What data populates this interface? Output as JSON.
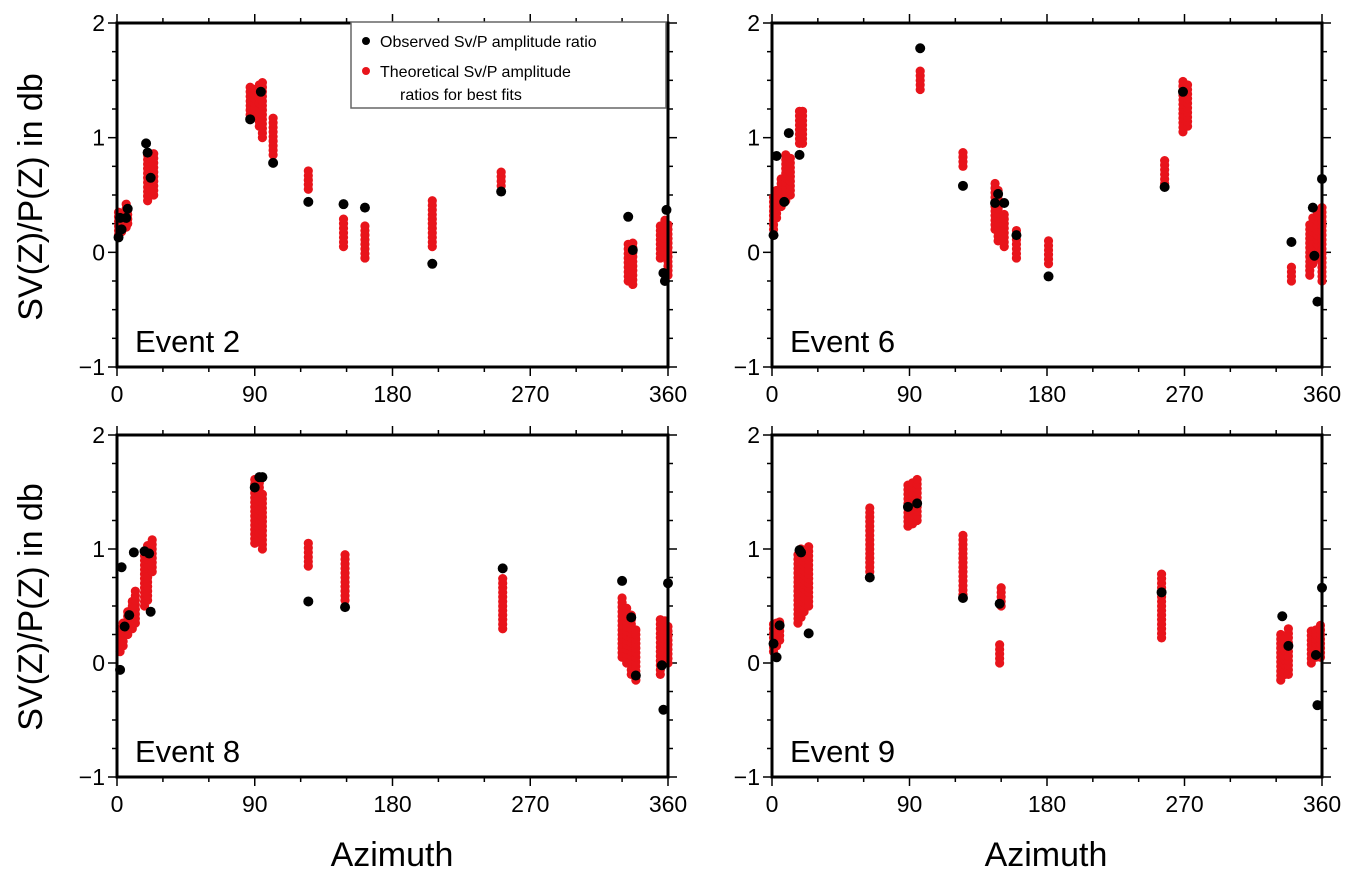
{
  "figure": {
    "ylabel": "SV(Z)/P(Z) in db",
    "xlabel": "Azimuth",
    "legend": {
      "placement": "top-right of first panel",
      "observed": "Observed Sv/P amplitude ratio",
      "theoretical_line1": "Theoretical Sv/P amplitude",
      "theoretical_line2": "ratios for best fits"
    }
  },
  "chart_data": [
    {
      "type": "scatter",
      "panel_label": "Event 2",
      "xlim": [
        0,
        360
      ],
      "ylim": [
        -1,
        2
      ],
      "xticks": [
        "0",
        "90",
        "180",
        "270",
        "360"
      ],
      "yticks": [
        "2",
        "1",
        "0",
        "−1"
      ],
      "series": [
        {
          "name": "Observed Sv/P amplitude ratio",
          "color": "#000000",
          "points": [
            [
              1,
              0.13
            ],
            [
              2,
              0.3
            ],
            [
              3,
              0.2
            ],
            [
              6,
              0.3
            ],
            [
              7,
              0.38
            ],
            [
              19,
              0.95
            ],
            [
              20,
              0.87
            ],
            [
              22,
              0.65
            ],
            [
              87,
              1.16
            ],
            [
              94,
              1.4
            ],
            [
              102,
              0.78
            ],
            [
              125,
              0.44
            ],
            [
              148,
              0.42
            ],
            [
              162,
              0.39
            ],
            [
              206,
              -0.1
            ],
            [
              251,
              0.53
            ],
            [
              334,
              0.31
            ],
            [
              337,
              0.02
            ],
            [
              357,
              -0.18
            ],
            [
              358,
              -0.25
            ],
            [
              359,
              0.37
            ]
          ]
        },
        {
          "name": "Theoretical Sv/P amplitude ratios for best fits",
          "color": "#e8141b",
          "ranges": [
            [
              1,
              0.15,
              0.35
            ],
            [
              3,
              0.18,
              0.35
            ],
            [
              6,
              0.22,
              0.42
            ],
            [
              7,
              0.25,
              0.4
            ],
            [
              20,
              0.45,
              0.85
            ],
            [
              22,
              0.5,
              0.85
            ],
            [
              24,
              0.5,
              0.88
            ],
            [
              87,
              1.2,
              1.45
            ],
            [
              90,
              1.18,
              1.45
            ],
            [
              93,
              1.1,
              1.48
            ],
            [
              95,
              1.0,
              1.48
            ],
            [
              102,
              0.85,
              1.2
            ],
            [
              125,
              0.55,
              0.72
            ],
            [
              148,
              0.05,
              0.3
            ],
            [
              162,
              -0.05,
              0.25
            ],
            [
              206,
              0.05,
              0.45
            ],
            [
              251,
              0.58,
              0.7
            ],
            [
              334,
              -0.25,
              0.08
            ],
            [
              337,
              -0.28,
              0.1
            ],
            [
              355,
              -0.05,
              0.25
            ],
            [
              358,
              0.0,
              0.3
            ],
            [
              360,
              -0.2,
              0.25
            ]
          ]
        }
      ]
    },
    {
      "type": "scatter",
      "panel_label": "Event 6",
      "xlim": [
        0,
        360
      ],
      "ylim": [
        -1,
        2
      ],
      "xticks": [
        "0",
        "90",
        "180",
        "270",
        "360"
      ],
      "yticks": [
        "2",
        "1",
        "0",
        "−1"
      ],
      "series": [
        {
          "name": "Observed Sv/P amplitude ratio",
          "color": "#000000",
          "points": [
            [
              1,
              0.15
            ],
            [
              3,
              0.84
            ],
            [
              8,
              0.44
            ],
            [
              11,
              1.04
            ],
            [
              18,
              0.85
            ],
            [
              97,
              1.78
            ],
            [
              125,
              0.58
            ],
            [
              146,
              0.43
            ],
            [
              148,
              0.51
            ],
            [
              152,
              0.43
            ],
            [
              160,
              0.15
            ],
            [
              181,
              -0.21
            ],
            [
              257,
              0.57
            ],
            [
              269,
              1.4
            ],
            [
              340,
              0.09
            ],
            [
              354,
              0.39
            ],
            [
              355,
              -0.03
            ],
            [
              357,
              -0.43
            ],
            [
              360,
              0.64
            ]
          ]
        },
        {
          "name": "Theoretical Sv/P amplitude ratios for best fits",
          "color": "#e8141b",
          "ranges": [
            [
              1,
              0.2,
              0.5
            ],
            [
              3,
              0.3,
              0.55
            ],
            [
              6,
              0.4,
              0.65
            ],
            [
              9,
              0.45,
              0.85
            ],
            [
              12,
              0.5,
              0.85
            ],
            [
              18,
              0.95,
              1.25
            ],
            [
              20,
              0.95,
              1.25
            ],
            [
              97,
              1.42,
              1.58
            ],
            [
              125,
              0.75,
              0.88
            ],
            [
              146,
              0.2,
              0.62
            ],
            [
              148,
              0.1,
              0.55
            ],
            [
              152,
              0.05,
              0.35
            ],
            [
              160,
              -0.05,
              0.2
            ],
            [
              181,
              -0.1,
              0.1
            ],
            [
              257,
              0.6,
              0.8
            ],
            [
              269,
              1.05,
              1.5
            ],
            [
              272,
              1.1,
              1.48
            ],
            [
              340,
              -0.25,
              -0.1
            ],
            [
              352,
              -0.2,
              0.25
            ],
            [
              354,
              -0.1,
              0.3
            ],
            [
              357,
              -0.05,
              0.35
            ],
            [
              360,
              -0.25,
              0.4
            ]
          ]
        }
      ]
    },
    {
      "type": "scatter",
      "panel_label": "Event 8",
      "xlim": [
        0,
        360
      ],
      "ylim": [
        -1,
        2
      ],
      "xticks": [
        "0",
        "90",
        "180",
        "270",
        "360"
      ],
      "yticks": [
        "2",
        "1",
        "0",
        "−1"
      ],
      "series": [
        {
          "name": "Observed Sv/P amplitude ratio",
          "color": "#000000",
          "points": [
            [
              2,
              -0.06
            ],
            [
              3,
              0.84
            ],
            [
              5,
              0.32
            ],
            [
              8,
              0.42
            ],
            [
              11,
              0.97
            ],
            [
              18,
              0.98
            ],
            [
              21,
              0.96
            ],
            [
              22,
              0.45
            ],
            [
              90,
              1.54
            ],
            [
              93,
              1.63
            ],
            [
              95,
              1.63
            ],
            [
              125,
              0.54
            ],
            [
              149,
              0.49
            ],
            [
              252,
              0.83
            ],
            [
              330,
              0.72
            ],
            [
              336,
              0.4
            ],
            [
              339,
              -0.11
            ],
            [
              356,
              -0.02
            ],
            [
              357,
              -0.41
            ],
            [
              360,
              0.7
            ]
          ]
        },
        {
          "name": "Theoretical Sv/P amplitude ratios for best fits",
          "color": "#e8141b",
          "ranges": [
            [
              2,
              0.1,
              0.3
            ],
            [
              4,
              0.15,
              0.35
            ],
            [
              7,
              0.25,
              0.45
            ],
            [
              10,
              0.3,
              0.55
            ],
            [
              12,
              0.35,
              0.65
            ],
            [
              18,
              0.5,
              1.0
            ],
            [
              20,
              0.55,
              1.05
            ],
            [
              23,
              0.8,
              1.1
            ],
            [
              90,
              1.05,
              1.62
            ],
            [
              93,
              1.1,
              1.62
            ],
            [
              95,
              1.0,
              1.5
            ],
            [
              125,
              0.85,
              1.05
            ],
            [
              149,
              0.55,
              0.98
            ],
            [
              252,
              0.3,
              0.75
            ],
            [
              330,
              0.05,
              0.6
            ],
            [
              333,
              0.0,
              0.5
            ],
            [
              336,
              -0.1,
              0.45
            ],
            [
              339,
              -0.15,
              0.3
            ],
            [
              355,
              -0.1,
              0.38
            ],
            [
              358,
              0.05,
              0.4
            ],
            [
              360,
              0.0,
              0.35
            ]
          ]
        }
      ]
    },
    {
      "type": "scatter",
      "panel_label": "Event 9",
      "xlim": [
        0,
        360
      ],
      "ylim": [
        -1,
        2
      ],
      "xticks": [
        "0",
        "90",
        "180",
        "270",
        "360"
      ],
      "yticks": [
        "2",
        "1",
        "0",
        "−1"
      ],
      "series": [
        {
          "name": "Observed Sv/P amplitude ratio",
          "color": "#000000",
          "points": [
            [
              1,
              0.17
            ],
            [
              3,
              0.05
            ],
            [
              5,
              0.33
            ],
            [
              18,
              0.99
            ],
            [
              19,
              0.97
            ],
            [
              24,
              0.26
            ],
            [
              64,
              0.75
            ],
            [
              89,
              1.37
            ],
            [
              95,
              1.4
            ],
            [
              125,
              0.57
            ],
            [
              149,
              0.52
            ],
            [
              255,
              0.62
            ],
            [
              334,
              0.41
            ],
            [
              338,
              0.15
            ],
            [
              356,
              0.07
            ],
            [
              357,
              -0.37
            ],
            [
              360,
              0.66
            ]
          ]
        },
        {
          "name": "Theoretical Sv/P amplitude ratios for best fits",
          "color": "#e8141b",
          "ranges": [
            [
              1,
              0.1,
              0.35
            ],
            [
              3,
              0.15,
              0.35
            ],
            [
              5,
              0.2,
              0.38
            ],
            [
              17,
              0.35,
              0.95
            ],
            [
              19,
              0.4,
              1.0
            ],
            [
              21,
              0.45,
              1.0
            ],
            [
              24,
              0.5,
              1.05
            ],
            [
              64,
              0.8,
              1.38
            ],
            [
              89,
              1.2,
              1.58
            ],
            [
              92,
              1.22,
              1.6
            ],
            [
              95,
              1.25,
              1.62
            ],
            [
              125,
              0.6,
              1.13
            ],
            [
              149,
              0.0,
              0.18
            ],
            [
              150,
              0.5,
              0.68
            ],
            [
              255,
              0.22,
              0.8
            ],
            [
              333,
              -0.15,
              0.28
            ],
            [
              336,
              -0.1,
              0.22
            ],
            [
              338,
              -0.1,
              0.3
            ],
            [
              353,
              0.0,
              0.3
            ],
            [
              356,
              0.05,
              0.3
            ],
            [
              359,
              0.05,
              0.33
            ]
          ]
        }
      ]
    }
  ]
}
